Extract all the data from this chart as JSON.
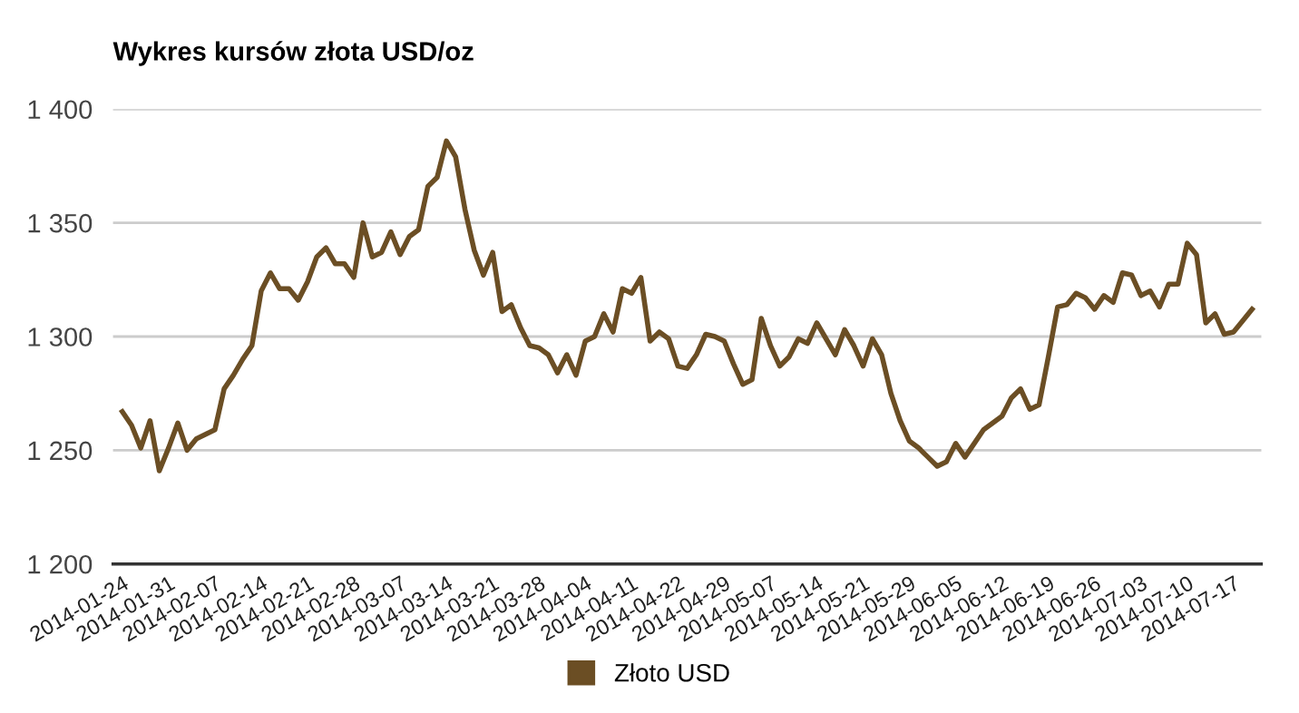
{
  "chart_data": {
    "type": "line",
    "title": "Wykres kursów złota USD/oz",
    "categories": [
      "2014-01-24",
      null,
      null,
      null,
      null,
      "2014-01-31",
      null,
      null,
      null,
      null,
      "2014-02-07",
      null,
      null,
      null,
      null,
      "2014-02-14",
      null,
      null,
      null,
      null,
      "2014-02-21",
      null,
      null,
      null,
      null,
      "2014-02-28",
      null,
      null,
      null,
      null,
      "2014-03-07",
      null,
      null,
      null,
      null,
      "2014-03-14",
      null,
      null,
      null,
      null,
      "2014-03-21",
      null,
      null,
      null,
      null,
      "2014-03-28",
      null,
      null,
      null,
      null,
      "2014-04-04",
      null,
      null,
      null,
      null,
      "2014-04-11",
      null,
      null,
      null,
      null,
      "2014-04-22",
      null,
      null,
      null,
      null,
      "2014-04-29",
      null,
      null,
      null,
      null,
      "2014-05-07",
      null,
      null,
      null,
      null,
      "2014-05-14",
      null,
      null,
      null,
      null,
      "2014-05-21",
      null,
      null,
      null,
      null,
      "2014-05-29",
      null,
      null,
      null,
      null,
      "2014-06-05",
      null,
      null,
      null,
      null,
      "2014-06-12",
      null,
      null,
      null,
      null,
      "2014-06-19",
      null,
      null,
      null,
      null,
      "2014-06-26",
      null,
      null,
      null,
      null,
      "2014-07-03",
      null,
      null,
      null,
      null,
      "2014-07-10",
      null,
      null,
      null,
      null,
      "2014-07-17",
      null,
      null
    ],
    "series": [
      {
        "name": "Złoto USD",
        "color": "#6b4e24",
        "values": [
          1267,
          1261,
          1251,
          1263,
          1241,
          1251,
          1262,
          1250,
          1255,
          1257,
          1259,
          1277,
          1283,
          1290,
          1296,
          1320,
          1328,
          1321,
          1321,
          1316,
          1324,
          1335,
          1339,
          1332,
          1332,
          1326,
          1350,
          1335,
          1337,
          1346,
          1336,
          1344,
          1347,
          1366,
          1370,
          1386,
          1379,
          1356,
          1338,
          1327,
          1337,
          1311,
          1314,
          1304,
          1296,
          1295,
          1292,
          1284,
          1292,
          1283,
          1298,
          1300,
          1310,
          1302,
          1321,
          1319,
          1326,
          1298,
          1302,
          1299,
          1287,
          1286,
          1292,
          1301,
          1300,
          1298,
          1288,
          1279,
          1281,
          1308,
          1296,
          1287,
          1291,
          1299,
          1297,
          1306,
          1299,
          1292,
          1303,
          1296,
          1287,
          1299,
          1292,
          1275,
          1263,
          1254,
          1251,
          1247,
          1243,
          1245,
          1253,
          1247,
          1253,
          1259,
          1262,
          1265,
          1273,
          1277,
          1268,
          1270,
          1291,
          1313,
          1314,
          1319,
          1317,
          1312,
          1318,
          1315,
          1328,
          1327,
          1318,
          1320,
          1313,
          1323,
          1323,
          1341,
          1336,
          1306,
          1310,
          1301,
          1302,
          1307,
          1312
        ]
      }
    ],
    "ylim": [
      1200,
      1400
    ],
    "yticks": [
      {
        "value": 1200,
        "label": "1 200"
      },
      {
        "value": 1250,
        "label": "1 250"
      },
      {
        "value": 1300,
        "label": "1 300"
      },
      {
        "value": 1350,
        "label": "1 350"
      },
      {
        "value": 1400,
        "label": "1 400"
      }
    ],
    "grid": "y",
    "legend": "bottom",
    "marker": "none",
    "line_style": "solid"
  }
}
